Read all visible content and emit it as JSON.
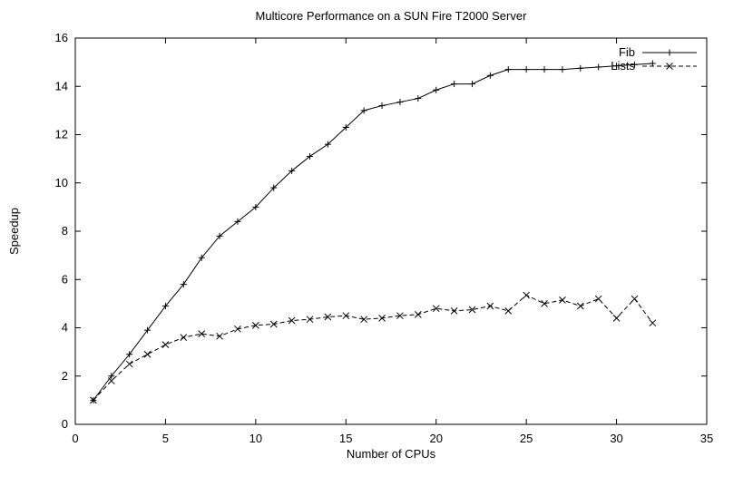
{
  "page": {
    "background": "#ffffff",
    "foreground": "#000000"
  },
  "chart_data": {
    "type": "line",
    "title": "Multicore Performance on a SUN Fire T2000 Server",
    "xlabel": "Number of CPUs",
    "ylabel": "Speedup",
    "xlim": [
      0,
      35
    ],
    "ylim": [
      0,
      16
    ],
    "xticks": [
      0,
      5,
      10,
      15,
      20,
      25,
      30,
      35
    ],
    "yticks": [
      0,
      2,
      4,
      6,
      8,
      10,
      12,
      14,
      16
    ],
    "grid": false,
    "legend_position": "top-right",
    "series": [
      {
        "name": "Fib",
        "line": "solid",
        "marker": "plus",
        "color": "#000000",
        "x": [
          1,
          2,
          3,
          4,
          5,
          6,
          7,
          8,
          9,
          10,
          11,
          12,
          13,
          14,
          15,
          16,
          17,
          18,
          19,
          20,
          21,
          22,
          23,
          24,
          25,
          26,
          27,
          28,
          29,
          30,
          31,
          32
        ],
        "y": [
          1.0,
          2.0,
          2.9,
          3.9,
          4.9,
          5.8,
          6.9,
          7.8,
          8.4,
          9.0,
          9.8,
          10.5,
          11.1,
          11.6,
          12.3,
          13.0,
          13.2,
          13.35,
          13.5,
          13.85,
          14.1,
          14.1,
          14.45,
          14.7,
          14.7,
          14.7,
          14.7,
          14.75,
          14.8,
          14.85,
          14.9,
          14.95
        ]
      },
      {
        "name": "Lists",
        "line": "dashed",
        "marker": "cross",
        "color": "#000000",
        "x": [
          1,
          2,
          3,
          4,
          5,
          6,
          7,
          8,
          9,
          10,
          11,
          12,
          13,
          14,
          15,
          16,
          17,
          18,
          19,
          20,
          21,
          22,
          23,
          24,
          25,
          26,
          27,
          28,
          29,
          30,
          31,
          32
        ],
        "y": [
          1.0,
          1.8,
          2.5,
          2.9,
          3.3,
          3.6,
          3.75,
          3.65,
          3.95,
          4.1,
          4.15,
          4.3,
          4.35,
          4.45,
          4.5,
          4.35,
          4.4,
          4.5,
          4.55,
          4.8,
          4.7,
          4.75,
          4.9,
          4.7,
          5.35,
          5.0,
          5.15,
          4.9,
          5.2,
          4.4,
          5.2,
          4.2
        ]
      }
    ]
  }
}
